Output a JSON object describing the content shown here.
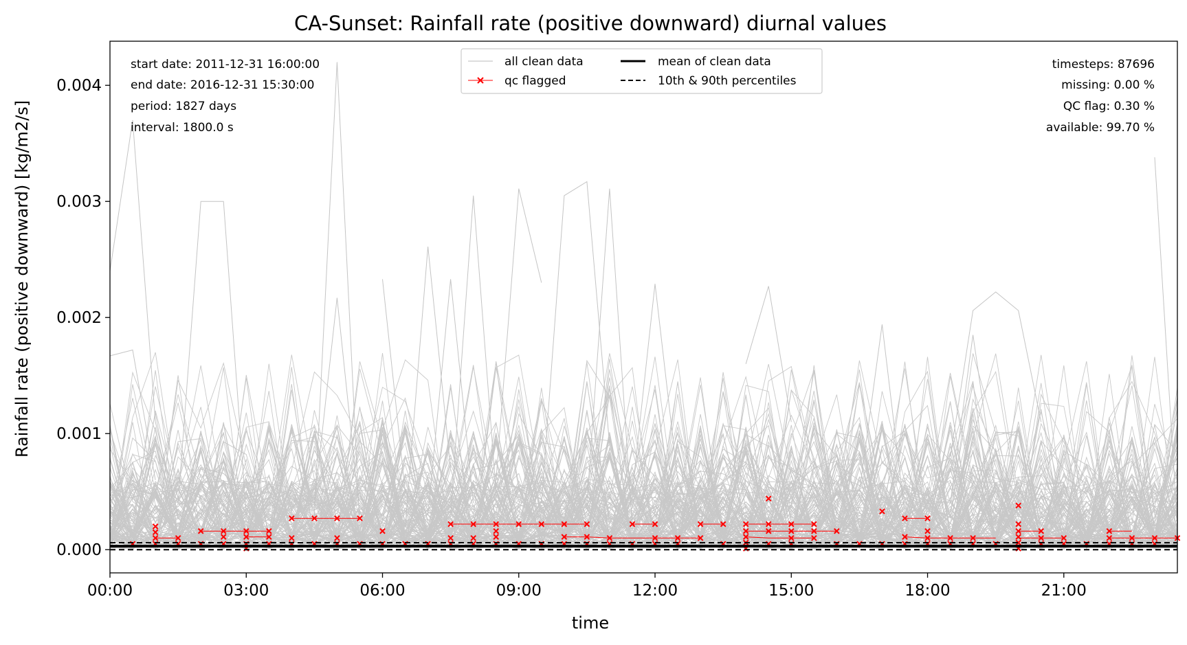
{
  "chart_data": {
    "type": "line",
    "title": "CA-Sunset: Rainfall rate (positive downward) diurnal values",
    "xlabel": "time",
    "ylabel": "Rainfall rate (positive downward) [kg/m2/s]",
    "xlim_hours": [
      0,
      23.5
    ],
    "ylim": [
      -0.0002,
      0.00438
    ],
    "x_ticks": [
      {
        "hour": 0,
        "label": "00:00"
      },
      {
        "hour": 3,
        "label": "03:00"
      },
      {
        "hour": 6,
        "label": "06:00"
      },
      {
        "hour": 9,
        "label": "09:00"
      },
      {
        "hour": 12,
        "label": "12:00"
      },
      {
        "hour": 15,
        "label": "15:00"
      },
      {
        "hour": 18,
        "label": "18:00"
      },
      {
        "hour": 21,
        "label": "21:00"
      }
    ],
    "y_ticks": [
      {
        "value": 0.0,
        "label": "0.000"
      },
      {
        "value": 0.001,
        "label": "0.001"
      },
      {
        "value": 0.002,
        "label": "0.002"
      },
      {
        "value": 0.003,
        "label": "0.003"
      },
      {
        "value": 0.004,
        "label": "0.004"
      }
    ],
    "grid": false,
    "legend_position": "top-center",
    "legend": [
      {
        "label": "all clean data",
        "style": "thin-gray"
      },
      {
        "label": "qc flagged",
        "style": "red-x"
      },
      {
        "label": "mean of clean data",
        "style": "thick-black"
      },
      {
        "label": "10th & 90th percentiles",
        "style": "dashed-black"
      }
    ],
    "info_left": [
      "start date: 2011-12-31 16:00:00",
      "end date: 2016-12-31 15:30:00",
      "period: 1827 days",
      "interval: 1800.0 s"
    ],
    "info_right": [
      "timesteps: 87696",
      "missing: 0.00 %",
      "QC flag: 0.30 %",
      "available: 99.70 %"
    ],
    "series": [
      {
        "name": "mean of clean data",
        "x": [
          0,
          23.5
        ],
        "y": [
          3e-05,
          3e-05
        ]
      },
      {
        "name": "10th & 90th percentiles",
        "x": [
          0,
          23.5
        ],
        "y": [
          0.0,
          0.0
        ]
      }
    ],
    "highlight_clean_lines": [
      {
        "x": [
          0,
          0.5,
          1,
          1.5
        ],
        "y": [
          0.0024,
          0.0037,
          0.0011,
          0.0003
        ]
      },
      {
        "x": [
          0,
          0.5,
          1
        ],
        "y": [
          0.00167,
          0.00172,
          0.0006
        ]
      },
      {
        "x": [
          1.5,
          2,
          2.5,
          3
        ],
        "y": [
          0.0004,
          0.003,
          0.003,
          0.0003
        ]
      },
      {
        "x": [
          4.5,
          5,
          5.5
        ],
        "y": [
          0.0003,
          0.0042,
          0.0002
        ]
      },
      {
        "x": [
          4.5,
          5,
          5.5
        ],
        "y": [
          0.0004,
          0.00217,
          0.0003
        ]
      },
      {
        "x": [
          6,
          6.5
        ],
        "y": [
          0.00233,
          0.0005
        ]
      },
      {
        "x": [
          6.5,
          7,
          7.5
        ],
        "y": [
          0.0002,
          0.00261,
          0.0007
        ]
      },
      {
        "x": [
          7,
          7.5,
          8
        ],
        "y": [
          0.0003,
          0.00233,
          0.0004
        ]
      },
      {
        "x": [
          7.5,
          8,
          8.5
        ],
        "y": [
          0.0003,
          0.00305,
          0.0005
        ]
      },
      {
        "x": [
          8.5,
          9,
          9.5
        ],
        "y": [
          0.0006,
          0.00311,
          0.0023
        ]
      },
      {
        "x": [
          9.5,
          10,
          10.5,
          11
        ],
        "y": [
          0.0004,
          0.00305,
          0.00317,
          0.0009
        ]
      },
      {
        "x": [
          10.5,
          11,
          11.5
        ],
        "y": [
          0.0004,
          0.00311,
          0.0002
        ]
      },
      {
        "x": [
          11.5,
          12,
          12.5
        ],
        "y": [
          0.0005,
          0.00229,
          0.0006
        ]
      },
      {
        "x": [
          14,
          14.5,
          15
        ],
        "y": [
          0.0016,
          0.00227,
          0.0011
        ]
      },
      {
        "x": [
          18.5,
          19,
          19.5,
          20,
          20.5
        ],
        "y": [
          0.0008,
          0.00206,
          0.00222,
          0.00206,
          0.0011
        ]
      },
      {
        "x": [
          23,
          23.5
        ],
        "y": [
          0.00338,
          0.0002
        ]
      },
      {
        "x": [
          16.5,
          17,
          17.5
        ],
        "y": [
          0.0005,
          0.00194,
          0.0003
        ]
      },
      {
        "x": [
          18.5,
          19,
          19.5
        ],
        "y": [
          0.0004,
          0.00185,
          0.0005
        ]
      }
    ],
    "qc_flagged_points": {
      "x": [
        0.5,
        1,
        1,
        1,
        1,
        1.5,
        1.5,
        2,
        2,
        2.5,
        2.5,
        2.5,
        3,
        3,
        3,
        3,
        3.5,
        3.5,
        3.5,
        4,
        4,
        4,
        4.5,
        4.5,
        5,
        5,
        5,
        5.5,
        5.5,
        6,
        6,
        6.5,
        7,
        7.5,
        7.5,
        7.5,
        8,
        8,
        8,
        8.5,
        8.5,
        8.5,
        8.5,
        9,
        9,
        9.5,
        9.5,
        10,
        10,
        10,
        10.5,
        10.5,
        10.5,
        11,
        11,
        11.5,
        11.5,
        12,
        12,
        12,
        12.5,
        12.5,
        13,
        13,
        13.5,
        13.5,
        14,
        14,
        14,
        14,
        14,
        14.5,
        14.5,
        14.5,
        14.5,
        15,
        15,
        15,
        15,
        15.5,
        15.5,
        15.5,
        16,
        16,
        16.5,
        17,
        17,
        17.5,
        17.5,
        17.5,
        18,
        18,
        18,
        18,
        18.5,
        18.5,
        19,
        19,
        19.5,
        20,
        20,
        20,
        20,
        20,
        20,
        20.5,
        20.5,
        20.5,
        21,
        21,
        21.5,
        22,
        22,
        22,
        22.5,
        22.5,
        23,
        23,
        23.5
      ],
      "y": [
        5e-05,
        0.0002,
        0.00015,
        0.0001,
        5e-05,
        0.0001,
        5e-05,
        0.00016,
        5e-05,
        0.00016,
        0.00011,
        5e-05,
        0.00016,
        0.00011,
        5e-05,
        1e-05,
        0.00016,
        0.00011,
        5e-05,
        0.00027,
        0.0001,
        5e-05,
        0.00027,
        5e-05,
        0.00027,
        0.0001,
        5e-05,
        0.00027,
        5e-05,
        0.00016,
        5e-05,
        5e-05,
        5e-05,
        0.00022,
        0.0001,
        5e-05,
        0.00022,
        0.0001,
        5e-05,
        0.00022,
        0.00016,
        0.00011,
        5e-05,
        0.00022,
        5e-05,
        0.00022,
        5e-05,
        0.00022,
        0.00011,
        5e-05,
        0.00022,
        0.00011,
        5e-05,
        0.0001,
        5e-05,
        0.00022,
        5e-05,
        0.00022,
        0.0001,
        5e-05,
        0.0001,
        5e-05,
        0.00022,
        0.0001,
        0.00022,
        5e-05,
        0.00022,
        0.00016,
        0.00011,
        6e-05,
        1e-05,
        0.00044,
        0.00022,
        0.00016,
        5e-05,
        0.00022,
        0.00016,
        0.0001,
        5e-05,
        0.00022,
        0.00016,
        0.0001,
        0.00016,
        5e-05,
        5e-05,
        0.00033,
        5e-05,
        0.00027,
        0.00011,
        5e-05,
        0.00027,
        0.00016,
        0.0001,
        5e-05,
        0.0001,
        5e-05,
        0.0001,
        5e-05,
        5e-05,
        0.00038,
        0.00022,
        0.00016,
        0.00011,
        6e-05,
        1e-05,
        0.00016,
        0.0001,
        5e-05,
        0.0001,
        5e-05,
        5e-05,
        0.00016,
        0.0001,
        5e-05,
        0.0001,
        5e-05,
        0.0001,
        5e-05,
        0.0001
      ]
    },
    "qc_flagged_links": [
      {
        "x": [
          4,
          4.5,
          5,
          5.5
        ],
        "y": [
          0.00027,
          0.00027,
          0.00027,
          0.00027
        ]
      },
      {
        "x": [
          7.5,
          8,
          8.5,
          9,
          9.5,
          10,
          10.5
        ],
        "y": [
          0.00022,
          0.00022,
          0.00022,
          0.00022,
          0.00022,
          0.00022,
          0.00022
        ]
      },
      {
        "x": [
          2,
          2.5,
          3,
          3.5
        ],
        "y": [
          0.00016,
          0.00016,
          0.00016,
          0.00016
        ]
      },
      {
        "x": [
          3,
          3.5
        ],
        "y": [
          0.00011,
          0.00011
        ]
      },
      {
        "x": [
          1,
          1.5
        ],
        "y": [
          0.0001,
          0.0001
        ]
      },
      {
        "x": [
          10,
          10.5,
          11,
          11.5,
          12,
          12.5,
          13
        ],
        "y": [
          0.00011,
          0.00011,
          0.0001,
          0.0001,
          0.0001,
          0.0001,
          0.0001
        ]
      },
      {
        "x": [
          11.5,
          12
        ],
        "y": [
          0.00022,
          0.00022
        ]
      },
      {
        "x": [
          13,
          13.5
        ],
        "y": [
          0.00022,
          0.00022
        ]
      },
      {
        "x": [
          14,
          14.5,
          15,
          15.5
        ],
        "y": [
          0.00022,
          0.00022,
          0.00022,
          0.00022
        ]
      },
      {
        "x": [
          14,
          14.5,
          15,
          15.5,
          16
        ],
        "y": [
          0.00016,
          0.00016,
          0.00016,
          0.00016,
          0.00016
        ]
      },
      {
        "x": [
          14,
          14.5,
          15,
          15.5
        ],
        "y": [
          0.00011,
          0.0001,
          0.0001,
          0.0001
        ]
      },
      {
        "x": [
          17.5,
          18
        ],
        "y": [
          0.00027,
          0.00027
        ]
      },
      {
        "x": [
          17.5,
          18,
          18.5,
          19,
          19.5
        ],
        "y": [
          0.00011,
          0.0001,
          0.0001,
          0.0001,
          0.0001
        ]
      },
      {
        "x": [
          20,
          20.5
        ],
        "y": [
          0.00016,
          0.00016
        ]
      },
      {
        "x": [
          20,
          20.5,
          21
        ],
        "y": [
          0.0001,
          0.0001,
          0.0001
        ]
      },
      {
        "x": [
          22,
          22.5,
          23,
          23.5
        ],
        "y": [
          0.0001,
          0.0001,
          0.0001,
          0.0001
        ]
      },
      {
        "x": [
          22,
          22.5
        ],
        "y": [
          0.00016,
          0.00016
        ]
      }
    ]
  }
}
